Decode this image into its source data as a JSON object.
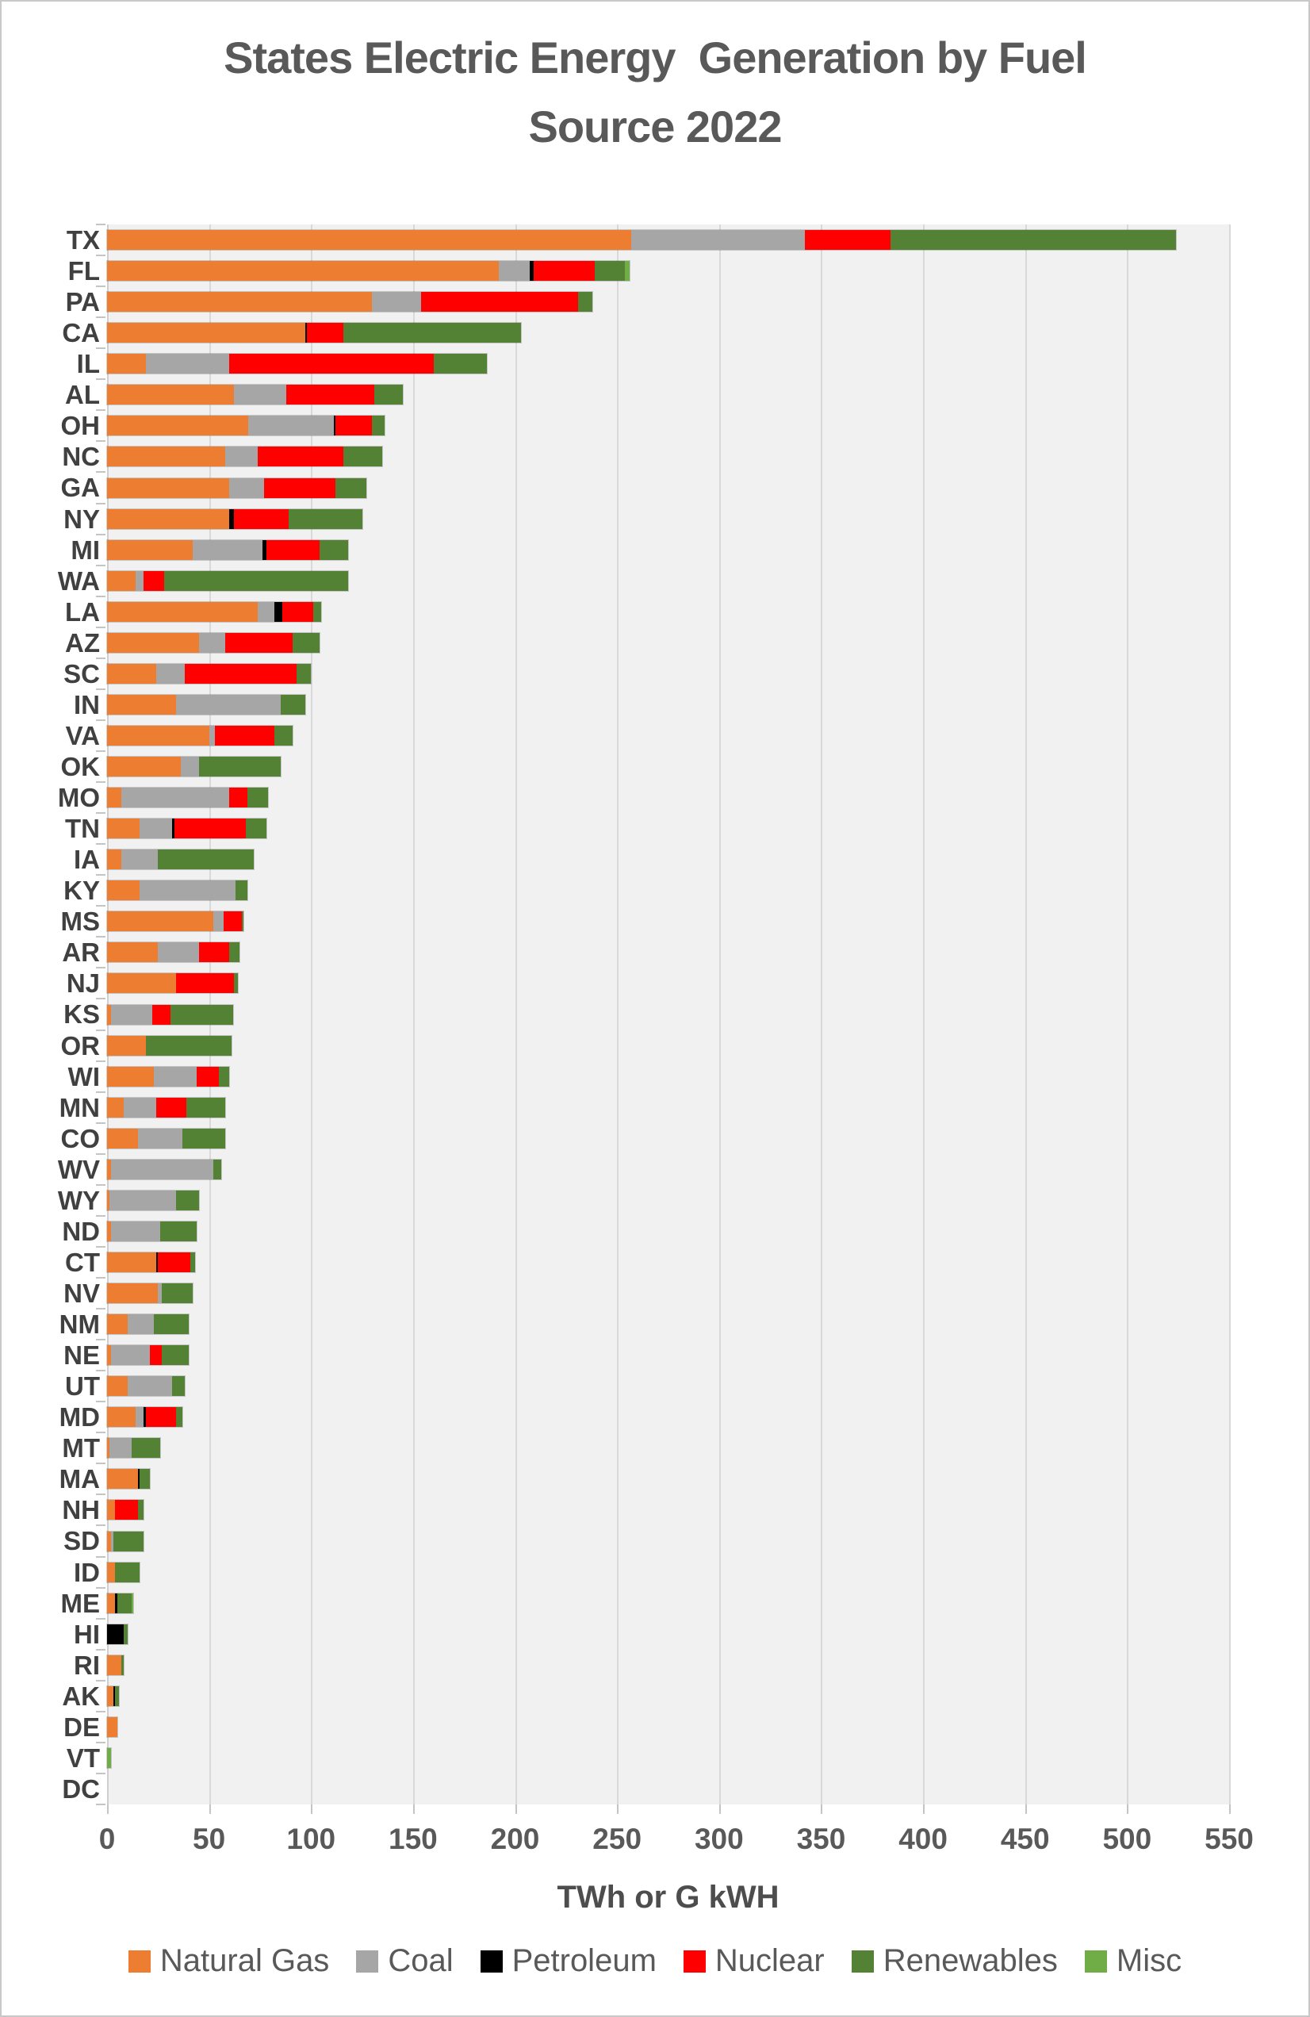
{
  "page": {
    "title_lines": "States Electric Energy  Generation by Fuel\nSource 2022"
  },
  "colors": {
    "plot_background": "#F1F1F1",
    "gridline": "#D9D9D9",
    "title_text": "#595959",
    "axis_text": "#595959",
    "state_label_text": "#404040",
    "page_border": "#C8C8C8"
  },
  "chart_data": {
    "type": "bar",
    "orientation": "horizontal",
    "stacked": true,
    "title": "States Electric Energy  Generation by Fuel Source 2022",
    "xlabel": "TWh or G kWH",
    "unit": "TWh",
    "xlim": [
      0,
      550
    ],
    "xticks": [
      0,
      50,
      100,
      150,
      200,
      250,
      300,
      350,
      400,
      450,
      500,
      550
    ],
    "grid": true,
    "legend_position": "bottom",
    "series": [
      {
        "key": "natural_gas",
        "label": "Natural Gas",
        "color": "#ED7D31"
      },
      {
        "key": "coal",
        "label": "Coal",
        "color": "#A6A6A6"
      },
      {
        "key": "petroleum",
        "label": "Petroleum",
        "color": "#000000"
      },
      {
        "key": "nuclear",
        "label": "Nuclear",
        "color": "#FF0000"
      },
      {
        "key": "renewables",
        "label": "Renewables",
        "color": "#548235"
      },
      {
        "key": "misc",
        "label": "Misc",
        "color": "#70AD47"
      }
    ],
    "states": [
      {
        "state": "TX",
        "values": {
          "natural_gas": 257,
          "coal": 85,
          "petroleum": 0,
          "nuclear": 42,
          "renewables": 140,
          "misc": 0
        }
      },
      {
        "state": "FL",
        "values": {
          "natural_gas": 192,
          "coal": 15,
          "petroleum": 2,
          "nuclear": 30,
          "renewables": 15,
          "misc": 2
        }
      },
      {
        "state": "PA",
        "values": {
          "natural_gas": 130,
          "coal": 24,
          "petroleum": 0,
          "nuclear": 77,
          "renewables": 7,
          "misc": 0
        }
      },
      {
        "state": "CA",
        "values": {
          "natural_gas": 97,
          "coal": 0,
          "petroleum": 1,
          "nuclear": 18,
          "renewables": 87,
          "misc": 0
        }
      },
      {
        "state": "IL",
        "values": {
          "natural_gas": 19,
          "coal": 41,
          "petroleum": 0,
          "nuclear": 100,
          "renewables": 26,
          "misc": 0
        }
      },
      {
        "state": "AL",
        "values": {
          "natural_gas": 62,
          "coal": 26,
          "petroleum": 0,
          "nuclear": 43,
          "renewables": 14,
          "misc": 0
        }
      },
      {
        "state": "OH",
        "values": {
          "natural_gas": 69,
          "coal": 42,
          "petroleum": 1,
          "nuclear": 18,
          "renewables": 6,
          "misc": 0
        }
      },
      {
        "state": "NC",
        "values": {
          "natural_gas": 58,
          "coal": 16,
          "petroleum": 0,
          "nuclear": 42,
          "renewables": 19,
          "misc": 0
        }
      },
      {
        "state": "GA",
        "values": {
          "natural_gas": 60,
          "coal": 17,
          "petroleum": 0,
          "nuclear": 35,
          "renewables": 15,
          "misc": 0
        }
      },
      {
        "state": "NY",
        "values": {
          "natural_gas": 60,
          "coal": 0,
          "petroleum": 2,
          "nuclear": 27,
          "renewables": 36,
          "misc": 0
        }
      },
      {
        "state": "MI",
        "values": {
          "natural_gas": 42,
          "coal": 34,
          "petroleum": 2,
          "nuclear": 26,
          "renewables": 14,
          "misc": 0
        }
      },
      {
        "state": "WA",
        "values": {
          "natural_gas": 14,
          "coal": 4,
          "petroleum": 0,
          "nuclear": 10,
          "renewables": 90,
          "misc": 0
        }
      },
      {
        "state": "LA",
        "values": {
          "natural_gas": 74,
          "coal": 8,
          "petroleum": 4,
          "nuclear": 15,
          "renewables": 4,
          "misc": 0
        }
      },
      {
        "state": "AZ",
        "values": {
          "natural_gas": 45,
          "coal": 13,
          "petroleum": 0,
          "nuclear": 33,
          "renewables": 13,
          "misc": 0
        }
      },
      {
        "state": "SC",
        "values": {
          "natural_gas": 24,
          "coal": 14,
          "petroleum": 0,
          "nuclear": 55,
          "renewables": 7,
          "misc": 0
        }
      },
      {
        "state": "IN",
        "values": {
          "natural_gas": 34,
          "coal": 51,
          "petroleum": 0,
          "nuclear": 0,
          "renewables": 12,
          "misc": 0
        }
      },
      {
        "state": "VA",
        "values": {
          "natural_gas": 50,
          "coal": 3,
          "petroleum": 0,
          "nuclear": 29,
          "renewables": 9,
          "misc": 0
        }
      },
      {
        "state": "OK",
        "values": {
          "natural_gas": 36,
          "coal": 9,
          "petroleum": 0,
          "nuclear": 0,
          "renewables": 40,
          "misc": 0
        }
      },
      {
        "state": "MO",
        "values": {
          "natural_gas": 7,
          "coal": 53,
          "petroleum": 0,
          "nuclear": 9,
          "renewables": 10,
          "misc": 0
        }
      },
      {
        "state": "TN",
        "values": {
          "natural_gas": 16,
          "coal": 16,
          "petroleum": 1,
          "nuclear": 35,
          "renewables": 10,
          "misc": 0
        }
      },
      {
        "state": "IA",
        "values": {
          "natural_gas": 7,
          "coal": 18,
          "petroleum": 0,
          "nuclear": 0,
          "renewables": 47,
          "misc": 0
        }
      },
      {
        "state": "KY",
        "values": {
          "natural_gas": 16,
          "coal": 47,
          "petroleum": 0,
          "nuclear": 0,
          "renewables": 6,
          "misc": 0
        }
      },
      {
        "state": "MS",
        "values": {
          "natural_gas": 52,
          "coal": 5,
          "petroleum": 0,
          "nuclear": 9,
          "renewables": 1,
          "misc": 0
        }
      },
      {
        "state": "AR",
        "values": {
          "natural_gas": 25,
          "coal": 20,
          "petroleum": 0,
          "nuclear": 15,
          "renewables": 5,
          "misc": 0
        }
      },
      {
        "state": "NJ",
        "values": {
          "natural_gas": 34,
          "coal": 0,
          "petroleum": 0,
          "nuclear": 28,
          "renewables": 2,
          "misc": 0
        }
      },
      {
        "state": "KS",
        "values": {
          "natural_gas": 2,
          "coal": 20,
          "petroleum": 0,
          "nuclear": 9,
          "renewables": 31,
          "misc": 0
        }
      },
      {
        "state": "OR",
        "values": {
          "natural_gas": 19,
          "coal": 0,
          "petroleum": 0,
          "nuclear": 0,
          "renewables": 42,
          "misc": 0
        }
      },
      {
        "state": "WI",
        "values": {
          "natural_gas": 23,
          "coal": 21,
          "petroleum": 0,
          "nuclear": 11,
          "renewables": 5,
          "misc": 0
        }
      },
      {
        "state": "MN",
        "values": {
          "natural_gas": 8,
          "coal": 16,
          "petroleum": 0,
          "nuclear": 15,
          "renewables": 19,
          "misc": 0
        }
      },
      {
        "state": "CO",
        "values": {
          "natural_gas": 15,
          "coal": 22,
          "petroleum": 0,
          "nuclear": 0,
          "renewables": 21,
          "misc": 0
        }
      },
      {
        "state": "WV",
        "values": {
          "natural_gas": 2,
          "coal": 50,
          "petroleum": 0,
          "nuclear": 0,
          "renewables": 4,
          "misc": 0
        }
      },
      {
        "state": "WY",
        "values": {
          "natural_gas": 1,
          "coal": 33,
          "petroleum": 0,
          "nuclear": 0,
          "renewables": 11,
          "misc": 0
        }
      },
      {
        "state": "ND",
        "values": {
          "natural_gas": 2,
          "coal": 24,
          "petroleum": 0,
          "nuclear": 0,
          "renewables": 18,
          "misc": 0
        }
      },
      {
        "state": "CT",
        "values": {
          "natural_gas": 24,
          "coal": 0,
          "petroleum": 1,
          "nuclear": 16,
          "renewables": 2,
          "misc": 0
        }
      },
      {
        "state": "NV",
        "values": {
          "natural_gas": 25,
          "coal": 2,
          "petroleum": 0,
          "nuclear": 0,
          "renewables": 15,
          "misc": 0
        }
      },
      {
        "state": "NM",
        "values": {
          "natural_gas": 10,
          "coal": 13,
          "petroleum": 0,
          "nuclear": 0,
          "renewables": 17,
          "misc": 0
        }
      },
      {
        "state": "NE",
        "values": {
          "natural_gas": 2,
          "coal": 19,
          "petroleum": 0,
          "nuclear": 6,
          "renewables": 13,
          "misc": 0
        }
      },
      {
        "state": "UT",
        "values": {
          "natural_gas": 10,
          "coal": 22,
          "petroleum": 0,
          "nuclear": 0,
          "renewables": 6,
          "misc": 0
        }
      },
      {
        "state": "MD",
        "values": {
          "natural_gas": 14,
          "coal": 4,
          "petroleum": 1,
          "nuclear": 15,
          "renewables": 3,
          "misc": 0
        }
      },
      {
        "state": "MT",
        "values": {
          "natural_gas": 1,
          "coal": 11,
          "petroleum": 0,
          "nuclear": 0,
          "renewables": 14,
          "misc": 0
        }
      },
      {
        "state": "MA",
        "values": {
          "natural_gas": 15,
          "coal": 0,
          "petroleum": 1,
          "nuclear": 0,
          "renewables": 5,
          "misc": 0
        }
      },
      {
        "state": "NH",
        "values": {
          "natural_gas": 4,
          "coal": 0,
          "petroleum": 0,
          "nuclear": 11,
          "renewables": 3,
          "misc": 0
        }
      },
      {
        "state": "SD",
        "values": {
          "natural_gas": 2,
          "coal": 1,
          "petroleum": 0,
          "nuclear": 0,
          "renewables": 15,
          "misc": 0
        }
      },
      {
        "state": "ID",
        "values": {
          "natural_gas": 4,
          "coal": 0,
          "petroleum": 0,
          "nuclear": 0,
          "renewables": 12,
          "misc": 0
        }
      },
      {
        "state": "ME",
        "values": {
          "natural_gas": 4,
          "coal": 0,
          "petroleum": 1,
          "nuclear": 0,
          "renewables": 7,
          "misc": 1
        }
      },
      {
        "state": "HI",
        "values": {
          "natural_gas": 0,
          "coal": 0,
          "petroleum": 8,
          "nuclear": 0,
          "renewables": 2,
          "misc": 0
        }
      },
      {
        "state": "RI",
        "values": {
          "natural_gas": 7,
          "coal": 0,
          "petroleum": 0,
          "nuclear": 0,
          "renewables": 1,
          "misc": 0
        }
      },
      {
        "state": "AK",
        "values": {
          "natural_gas": 3,
          "coal": 0,
          "petroleum": 1,
          "nuclear": 0,
          "renewables": 2,
          "misc": 0
        }
      },
      {
        "state": "DE",
        "values": {
          "natural_gas": 5,
          "coal": 0,
          "petroleum": 0,
          "nuclear": 0,
          "renewables": 0,
          "misc": 0
        }
      },
      {
        "state": "VT",
        "values": {
          "natural_gas": 0,
          "coal": 0,
          "petroleum": 0,
          "nuclear": 0,
          "renewables": 0,
          "misc": 2
        }
      },
      {
        "state": "DC",
        "values": {
          "natural_gas": 0,
          "coal": 0,
          "petroleum": 0,
          "nuclear": 0,
          "renewables": 0,
          "misc": 0
        }
      }
    ]
  }
}
